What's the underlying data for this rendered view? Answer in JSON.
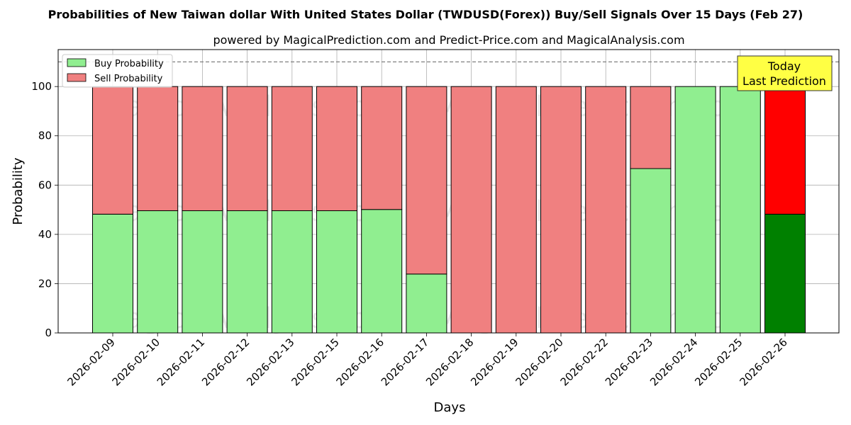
{
  "chart_data": {
    "type": "bar",
    "stacked": true,
    "title": "Probabilities of New Taiwan dollar With United States Dollar (TWDUSD(Forex)) Buy/Sell Signals Over 15 Days (Feb 27)",
    "subtitle": "powered by MagicalPrediction.com and Predict-Price.com and MagicalAnalysis.com",
    "xlabel": "Days",
    "ylabel": "Probability",
    "ylim": [
      0,
      115
    ],
    "yticks": [
      0,
      20,
      40,
      60,
      80,
      100
    ],
    "grid": true,
    "legend_placement": "top-left",
    "reference_line": 110,
    "categories": [
      "2026-02-09",
      "2026-02-10",
      "2026-02-11",
      "2026-02-12",
      "2026-02-13",
      "2026-02-15",
      "2026-02-16",
      "2026-02-17",
      "2026-02-18",
      "2026-02-19",
      "2026-02-20",
      "2026-02-22",
      "2026-02-23",
      "2026-02-24",
      "2026-02-25",
      "2026-02-26"
    ],
    "series": [
      {
        "name": "Buy Probability",
        "color": "#90EE90",
        "values": [
          48.2,
          49.6,
          49.6,
          49.6,
          49.6,
          49.6,
          50.1,
          23.9,
          0,
          0,
          0,
          0,
          66.7,
          100,
          100,
          48.2
        ]
      },
      {
        "name": "Sell Probability",
        "color": "#F08080",
        "values": [
          51.8,
          50.4,
          50.4,
          50.4,
          50.4,
          50.4,
          49.9,
          76.1,
          100,
          100,
          100,
          100,
          33.3,
          0,
          0,
          51.8
        ]
      }
    ],
    "highlight": {
      "index": 15,
      "buy_color": "#008000",
      "sell_color": "#FF0000"
    },
    "annotation": {
      "lines": [
        "Today",
        "Last Prediction"
      ],
      "color": "#FFFF44"
    },
    "watermarks": [
      "MagicalAnalysis.com",
      "MagicalPrediction.com"
    ]
  }
}
